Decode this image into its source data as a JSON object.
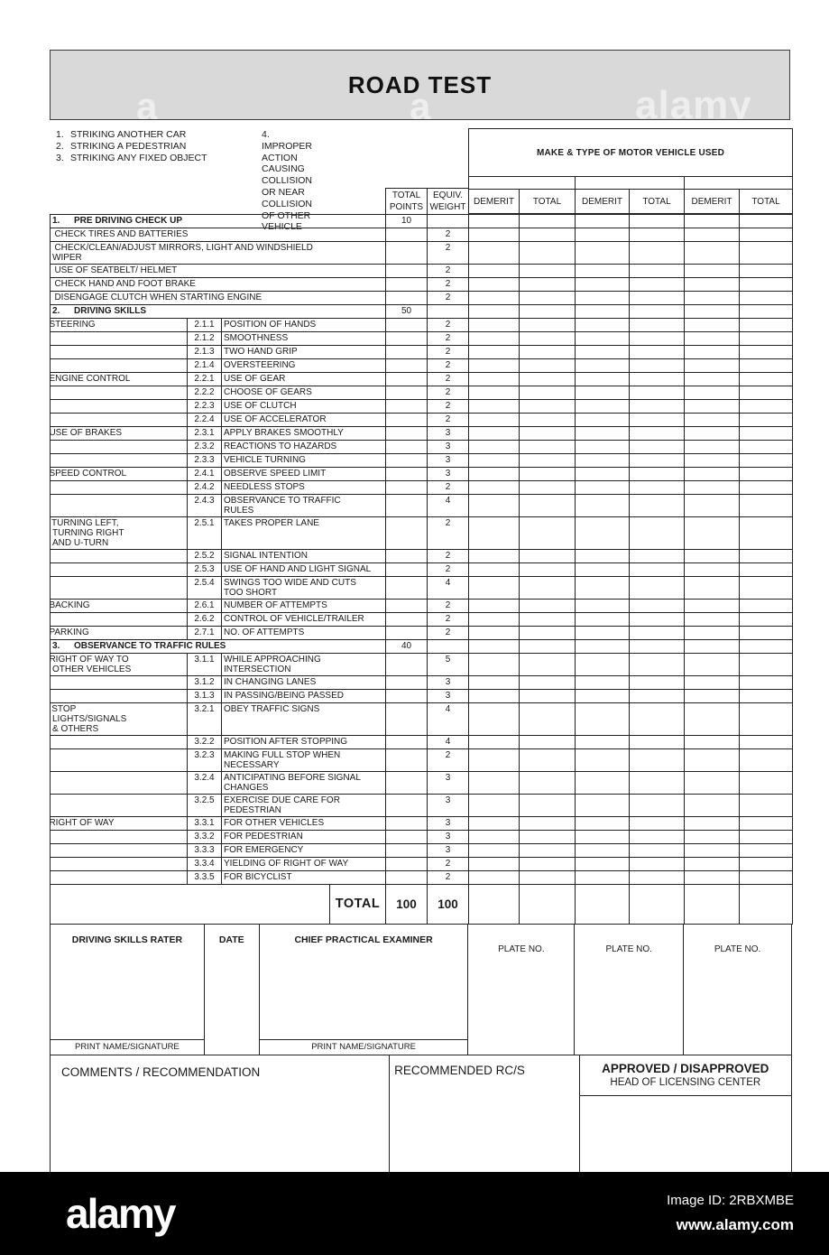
{
  "title": "ROAD TEST",
  "incidents": [
    {
      "no": "1.",
      "text": "STRIKING ANOTHER CAR"
    },
    {
      "no": "2.",
      "text": "STRIKING A PEDESTRIAN"
    },
    {
      "no": "3.",
      "text": "STRIKING ANY FIXED OBJECT"
    },
    {
      "no": "4.",
      "text": "IMPROPER ACTION CAUSING\nCOLLISION OR NEAR\nCOLLISION OF OTHER\nVEHICLE"
    }
  ],
  "vehicle": {
    "title": "MAKE & TYPE OF MOTOR VEHICLE USED",
    "cols": [
      "DEMERIT",
      "TOTAL",
      "DEMERIT",
      "TOTAL",
      "DEMERIT",
      "TOTAL"
    ]
  },
  "score_headers": {
    "total_points": "TOTAL\nPOINTS",
    "equiv_weight": "EQUIV.\nWEIGHT"
  },
  "table": {
    "rows": [
      {
        "t": "sec",
        "no": "1.",
        "title": "PRE DRIVING CHECK UP",
        "pts": "10"
      },
      {
        "t": "item",
        "no": "1.1",
        "desc": "CHECK TIRES AND BATTERIES",
        "w": "2"
      },
      {
        "t": "item",
        "no": "1.2",
        "desc": "CHECK/CLEAN/ADJUST MIRRORS, LIGHT AND WINDSHIELD\nWIPER",
        "w": "2"
      },
      {
        "t": "item",
        "no": "1.3",
        "desc": "USE OF SEATBELT/ HELMET",
        "w": "2"
      },
      {
        "t": "item",
        "no": "1.4",
        "desc": "CHECK HAND AND FOOT BRAKE",
        "w": "2"
      },
      {
        "t": "item",
        "no": "1.5",
        "desc": "DISENGAGE CLUTCH WHEN STARTING ENGINE",
        "w": "2"
      },
      {
        "t": "sec",
        "no": "2.",
        "title": "DRIVING SKILLS",
        "pts": "50"
      },
      {
        "t": "sub",
        "cat": "2.1  STEERING",
        "sn": "2.1.1",
        "desc": "POSITION OF HANDS",
        "w": "2"
      },
      {
        "t": "sub",
        "sn": "2.1.2",
        "desc": "SMOOTHNESS",
        "w": "2"
      },
      {
        "t": "sub",
        "sn": "2.1.3",
        "desc": "TWO HAND GRIP",
        "w": "2"
      },
      {
        "t": "sub",
        "sn": "2.1.4",
        "desc": "OVERSTEERING",
        "w": "2"
      },
      {
        "t": "sub",
        "cat": "2.2  ENGINE CONTROL",
        "sn": "2.2.1",
        "desc": "USE OF GEAR",
        "w": "2"
      },
      {
        "t": "sub",
        "sn": "2.2.2",
        "desc": "CHOOSE OF GEARS",
        "w": "2"
      },
      {
        "t": "sub",
        "sn": "2.2.3",
        "desc": "USE OF CLUTCH",
        "w": "2"
      },
      {
        "t": "sub",
        "sn": "2.2.4",
        "desc": "USE OF ACCELERATOR",
        "w": "2"
      },
      {
        "t": "sub",
        "cat": "2.3  USE OF BRAKES",
        "sn": "2.3.1",
        "desc": "APPLY BRAKES SMOOTHLY",
        "w": "3"
      },
      {
        "t": "sub",
        "sn": "2.3.2",
        "desc": "REACTIONS TO HAZARDS",
        "w": "3"
      },
      {
        "t": "sub",
        "sn": "2.3.3",
        "desc": "VEHICLE TURNING",
        "w": "3"
      },
      {
        "t": "sub",
        "cat": "2.4  SPEED CONTROL",
        "sn": "2.4.1",
        "desc": "OBSERVE SPEED LIMIT",
        "w": "3"
      },
      {
        "t": "sub",
        "sn": "2.4.2",
        "desc": "NEEDLESS STOPS",
        "w": "2"
      },
      {
        "t": "sub",
        "sn": "2.4.3",
        "desc": "OBSERVANCE TO TRAFFIC\nRULES",
        "w": "4"
      },
      {
        "t": "sub",
        "cat": "2.5   TURNING LEFT,\nTURNING RIGHT\nAND U-TURN",
        "sn": "2.5.1",
        "desc": "TAKES PROPER LANE",
        "w": "2"
      },
      {
        "t": "sub",
        "sn": "2.5.2",
        "desc": "SIGNAL INTENTION",
        "w": "2"
      },
      {
        "t": "sub",
        "sn": "2.5.3",
        "desc": "USE OF HAND AND LIGHT SIGNAL",
        "w": "2"
      },
      {
        "t": "sub",
        "sn": "2.5.4",
        "desc": "SWINGS TOO WIDE AND CUTS\nTOO SHORT",
        "w": "4"
      },
      {
        "t": "sub",
        "cat": "2.6  BACKING",
        "sn": "2.6.1",
        "desc": "NUMBER OF ATTEMPTS",
        "w": "2"
      },
      {
        "t": "sub",
        "sn": "2.6.2",
        "desc": "CONTROL OF VEHICLE/TRAILER",
        "w": "2"
      },
      {
        "t": "sub",
        "cat": "2.7  PARKING",
        "sn": "2.7.1",
        "desc": "NO. OF ATTEMPTS",
        "w": "2"
      },
      {
        "t": "sec",
        "no": "3.",
        "title": "OBSERVANCE TO TRAFFIC RULES",
        "pts": "40"
      },
      {
        "t": "sub",
        "cat": "3.1  RIGHT OF WAY TO\nOTHER VEHICLES",
        "sn": "3.1.1",
        "desc": "WHILE APPROACHING\nINTERSECTION",
        "w": "5"
      },
      {
        "t": "sub",
        "sn": "3.1.2",
        "desc": "IN CHANGING LANES",
        "w": "3"
      },
      {
        "t": "sub",
        "sn": "3.1.3",
        "desc": "IN PASSING/BEING PASSED",
        "w": "3"
      },
      {
        "t": "sub",
        "cat": "3.2   STOP\nLIGHTS/SIGNALS\n& OTHERS",
        "sn": "3.2.1",
        "desc": "OBEY TRAFFIC SIGNS",
        "w": "4"
      },
      {
        "t": "sub",
        "sn": "3.2.2",
        "desc": "POSITION AFTER STOPPING",
        "w": "4"
      },
      {
        "t": "sub",
        "sn": "3.2.3",
        "desc": "MAKING FULL STOP WHEN\nNECESSARY",
        "w": "2"
      },
      {
        "t": "sub",
        "sn": "3.2.4",
        "desc": "ANTICIPATING BEFORE SIGNAL\nCHANGES",
        "w": "3"
      },
      {
        "t": "sub",
        "sn": "3.2.5",
        "desc": "EXERCISE DUE CARE FOR\nPEDESTRIAN",
        "w": "3"
      },
      {
        "t": "sub",
        "cat": "3.3  RIGHT OF WAY",
        "sn": "3.3.1",
        "desc": "FOR OTHER VEHICLES",
        "w": "3"
      },
      {
        "t": "sub",
        "sn": "3.3.2",
        "desc": "FOR PEDESTRIAN",
        "w": "3"
      },
      {
        "t": "sub",
        "sn": "3.3.3",
        "desc": "FOR EMERGENCY",
        "w": "3"
      },
      {
        "t": "sub",
        "sn": "3.3.4",
        "desc": "YIELDING OF RIGHT OF WAY",
        "w": "2"
      },
      {
        "t": "sub",
        "sn": "3.3.5",
        "desc": "FOR BICYCLIST",
        "w": "2"
      }
    ],
    "total": {
      "label": "TOTAL",
      "points": "100",
      "weight": "100"
    }
  },
  "signature": {
    "rater": "DRIVING SKILLS RATER",
    "date": "DATE",
    "examiner": "CHIEF PRACTICAL EXAMINER",
    "plates": [
      "PLATE NO.",
      "PLATE NO.",
      "PLATE NO."
    ],
    "sig_label": "PRINT NAME/SIGNATURE"
  },
  "comments": {
    "left_label": "COMMENTS / RECOMMENDATION",
    "mid_label": "RECOMMENDED RC/S",
    "right_title": "APPROVED / DISAPPROVED",
    "right_sub": "HEAD OF LICENSING CENTER",
    "right_sig": "PRINT NAME/SIGNATURE"
  },
  "watermarks": {
    "a1": "a",
    "a2": "a",
    "brand": "alamy"
  },
  "footer": {
    "logo": "alamy",
    "image_id": "Image ID: 2RBXMBE",
    "url": "www.alamy.com"
  },
  "colors": {
    "title_bg": "#d9d9d9",
    "line": "#222222",
    "footer_bg": "#000000"
  }
}
